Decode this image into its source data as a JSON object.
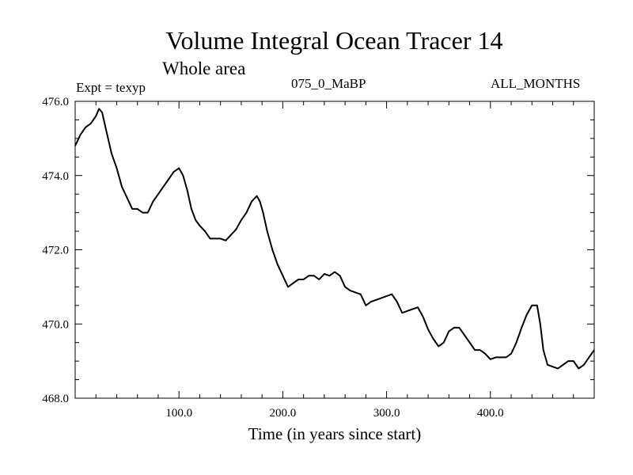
{
  "chart_data": {
    "type": "line",
    "title": "Volume Integral Ocean Tracer 14",
    "subtitle": "Whole area",
    "annotations": {
      "experiment": "Expt = texyp",
      "case": "075_0_MaBP",
      "period": "ALL_MONTHS"
    },
    "xlabel": "Time (in years since start)",
    "ylabel": "",
    "xlim": [
      0,
      500
    ],
    "ylim": [
      468.0,
      476.0
    ],
    "x_ticks": [
      100,
      200,
      300,
      400
    ],
    "x_tick_labels": [
      "100.0",
      "200.0",
      "300.0",
      "400.0"
    ],
    "y_ticks": [
      468,
      470,
      472,
      474,
      476
    ],
    "y_tick_labels": [
      "468.0",
      "470.0",
      "472.0",
      "474.0",
      "476.0"
    ],
    "grid": false,
    "line_color": "#000000",
    "series": [
      {
        "x": [
          0,
          5,
          10,
          15,
          20,
          23,
          26,
          30,
          35,
          40,
          45,
          50,
          55,
          60,
          65,
          70,
          75,
          80,
          85,
          90,
          95,
          100,
          104,
          108,
          112,
          116,
          120,
          125,
          130,
          135,
          140,
          145,
          150,
          155,
          160,
          165,
          170,
          175,
          178,
          181,
          185,
          190,
          195,
          200,
          205,
          210,
          215,
          220,
          225,
          230,
          235,
          240,
          245,
          250,
          255,
          260,
          265,
          270,
          275,
          280,
          285,
          290,
          295,
          300,
          305,
          310,
          315,
          320,
          325,
          330,
          335,
          340,
          345,
          350,
          355,
          360,
          365,
          370,
          375,
          380,
          385,
          390,
          395,
          400,
          405,
          410,
          415,
          420,
          425,
          430,
          435,
          440,
          445,
          448,
          451,
          455,
          460,
          465,
          470,
          475,
          480,
          485,
          490,
          495,
          500
        ],
        "y": [
          474.8,
          475.1,
          475.3,
          475.4,
          475.6,
          475.8,
          475.7,
          475.2,
          474.6,
          474.2,
          473.7,
          473.4,
          473.1,
          473.1,
          473.0,
          473.0,
          473.3,
          473.5,
          473.7,
          473.9,
          474.1,
          474.2,
          474.0,
          473.6,
          473.1,
          472.8,
          472.65,
          472.5,
          472.3,
          472.3,
          472.3,
          472.25,
          472.4,
          472.55,
          472.8,
          473.0,
          473.3,
          473.45,
          473.3,
          473.0,
          472.5,
          472.0,
          471.6,
          471.3,
          471.0,
          471.1,
          471.2,
          471.2,
          471.3,
          471.3,
          471.2,
          471.35,
          471.3,
          471.4,
          471.3,
          471.0,
          470.9,
          470.85,
          470.8,
          470.5,
          470.6,
          470.65,
          470.7,
          470.75,
          470.8,
          470.6,
          470.3,
          470.35,
          470.4,
          470.45,
          470.2,
          469.85,
          469.6,
          469.4,
          469.5,
          469.8,
          469.9,
          469.9,
          469.7,
          469.5,
          469.3,
          469.3,
          469.2,
          469.05,
          469.1,
          469.1,
          469.1,
          469.2,
          469.5,
          469.9,
          470.25,
          470.5,
          470.5,
          470.0,
          469.3,
          468.9,
          468.85,
          468.8,
          468.9,
          469.0,
          469.0,
          468.8,
          468.9,
          469.1,
          469.3
        ]
      }
    ]
  }
}
